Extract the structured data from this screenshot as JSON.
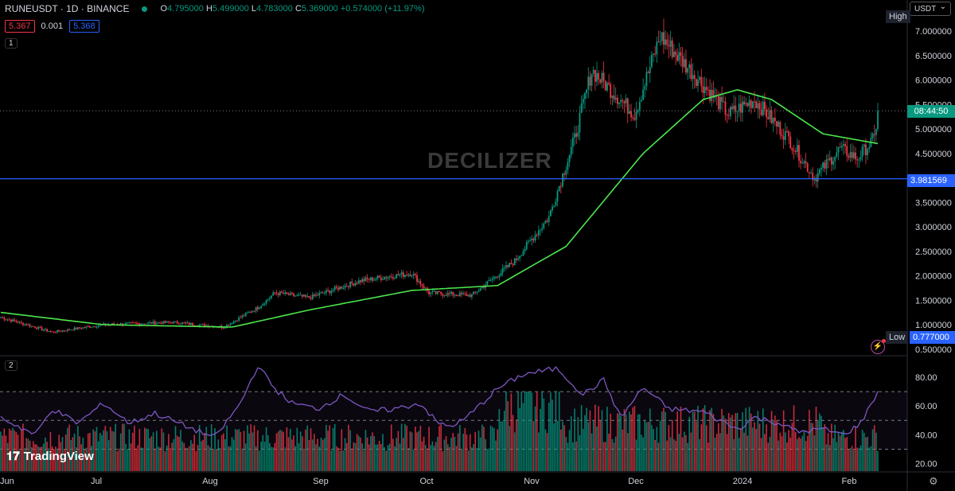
{
  "header": {
    "symbol": "RUNEUSDT · 1D · BINANCE",
    "ohlc": [
      {
        "k": "O",
        "v": "4.795000"
      },
      {
        "k": "H",
        "v": "5.499000"
      },
      {
        "k": "L",
        "v": "4.783000"
      },
      {
        "k": "C",
        "v": "5.369000"
      },
      {
        "k": "",
        "v": "+0.574000 (+11.97%)"
      }
    ],
    "bid": "5.367",
    "spread": "0.001",
    "ask": "5.368",
    "collapse_main": "1",
    "collapse_osc": "2"
  },
  "currency": "USDT",
  "watermark": "DECILIZER",
  "branding": "TradingView",
  "tags": {
    "high_label": "High",
    "low_label": "Low",
    "low_value": "0.777000",
    "line_value": "3.981569",
    "countdown": "08:44:50"
  },
  "colors": {
    "up": "#089981",
    "down": "#f23645",
    "ma": "#4ce64c",
    "hline": "#2962ff",
    "osc": "#7e57c2"
  },
  "chart_data": [
    {
      "type": "candlestick",
      "title": "RUNEUSDT · 1D · BINANCE",
      "y_ticks": [
        "7.000000",
        "6.500000",
        "6.000000",
        "5.500000",
        "5.000000",
        "4.500000",
        "3.500000",
        "3.000000",
        "2.500000",
        "2.000000",
        "1.500000",
        "1.000000",
        "0.500000"
      ],
      "x_ticks": [
        "Jun",
        "Jul",
        "Aug",
        "Sep",
        "Oct",
        "Nov",
        "Dec",
        "2024",
        "Feb"
      ],
      "ylim": [
        0.5,
        7.3
      ],
      "close_anchors": [
        [
          0,
          1.15
        ],
        [
          30,
          0.85
        ],
        [
          60,
          1.0
        ],
        [
          100,
          1.05
        ],
        [
          130,
          0.95
        ],
        [
          150,
          1.35
        ],
        [
          160,
          1.65
        ],
        [
          180,
          1.55
        ],
        [
          210,
          1.9
        ],
        [
          240,
          2.05
        ],
        [
          250,
          1.65
        ],
        [
          275,
          1.6
        ],
        [
          300,
          2.3
        ],
        [
          320,
          3.2
        ],
        [
          335,
          4.8
        ],
        [
          345,
          6.2
        ],
        [
          370,
          5.3
        ],
        [
          385,
          6.9
        ],
        [
          410,
          5.9
        ],
        [
          425,
          5.3
        ],
        [
          440,
          5.6
        ],
        [
          460,
          4.8
        ],
        [
          475,
          4.0
        ],
        [
          490,
          4.6
        ],
        [
          500,
          4.4
        ],
        [
          510,
          4.8
        ],
        [
          512,
          5.37
        ]
      ],
      "moving_average_anchors": [
        [
          0,
          1.25
        ],
        [
          60,
          1.0
        ],
        [
          135,
          0.95
        ],
        [
          180,
          1.3
        ],
        [
          240,
          1.7
        ],
        [
          290,
          1.8
        ],
        [
          330,
          2.6
        ],
        [
          375,
          4.5
        ],
        [
          410,
          5.6
        ],
        [
          430,
          5.8
        ],
        [
          450,
          5.6
        ],
        [
          480,
          4.9
        ],
        [
          512,
          4.7
        ]
      ],
      "horizontal_line": 3.981569,
      "last_price_line": 5.369
    },
    {
      "type": "line",
      "title": "",
      "y_ticks": [
        "80.00",
        "60.00",
        "40.00",
        "20.00"
      ],
      "ylim": [
        18,
        90
      ],
      "band_levels": [
        70,
        50,
        30
      ],
      "rsi_anchors": [
        [
          0,
          52
        ],
        [
          20,
          40
        ],
        [
          30,
          58
        ],
        [
          45,
          48
        ],
        [
          60,
          62
        ],
        [
          75,
          48
        ],
        [
          90,
          55
        ],
        [
          110,
          45
        ],
        [
          125,
          38
        ],
        [
          140,
          62
        ],
        [
          150,
          88
        ],
        [
          160,
          72
        ],
        [
          170,
          62
        ],
        [
          185,
          58
        ],
        [
          200,
          68
        ],
        [
          215,
          56
        ],
        [
          230,
          58
        ],
        [
          245,
          62
        ],
        [
          255,
          48
        ],
        [
          262,
          46
        ],
        [
          270,
          50
        ],
        [
          290,
          72
        ],
        [
          305,
          82
        ],
        [
          325,
          86
        ],
        [
          340,
          68
        ],
        [
          352,
          78
        ],
        [
          362,
          52
        ],
        [
          375,
          73
        ],
        [
          390,
          58
        ],
        [
          410,
          56
        ],
        [
          420,
          50
        ],
        [
          430,
          44
        ],
        [
          440,
          52
        ],
        [
          455,
          48
        ],
        [
          465,
          42
        ],
        [
          480,
          44
        ],
        [
          492,
          40
        ],
        [
          502,
          48
        ],
        [
          512,
          70
        ]
      ]
    }
  ]
}
